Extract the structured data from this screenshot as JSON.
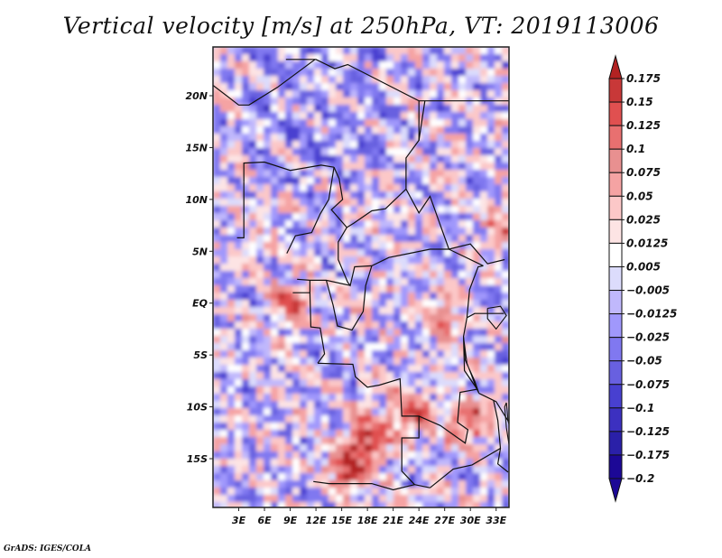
{
  "chart_data": {
    "type": "heatmap",
    "title": "Vertical velocity [m/s] at 250hPa, VT: 2019113006",
    "variable": "Vertical velocity",
    "units": "m/s",
    "level": "250hPa",
    "valid_time": "2019113006",
    "xlabel": "",
    "ylabel": "",
    "x_ticks": [
      "3E",
      "6E",
      "9E",
      "12E",
      "15E",
      "18E",
      "21E",
      "24E",
      "27E",
      "30E",
      "33E"
    ],
    "x_tick_values": [
      3,
      6,
      9,
      12,
      15,
      18,
      21,
      24,
      27,
      30,
      33
    ],
    "y_ticks": [
      "20N",
      "15N",
      "10N",
      "5N",
      "EQ",
      "5S",
      "10S",
      "15S"
    ],
    "y_tick_values": [
      20,
      15,
      10,
      5,
      0,
      -5,
      -10,
      -15
    ],
    "xlim": [
      0,
      34.5
    ],
    "ylim": [
      -19.7,
      24.7
    ],
    "grid": false,
    "colorbar": {
      "placement": "right",
      "labels": [
        "0.175",
        "0.15",
        "0.125",
        "0.1",
        "0.075",
        "0.05",
        "0.025",
        "0.0125",
        "0.005",
        "-0.005",
        "-0.0125",
        "-0.025",
        "-0.05",
        "-0.075",
        "-0.1",
        "-0.125",
        "-0.175",
        "-0.2"
      ],
      "colors": [
        "#b22222",
        "#c83838",
        "#e05050",
        "#e87070",
        "#e89090",
        "#f5a3a3",
        "#fcc8c8",
        "#fde4e4",
        "#ffffff",
        "#dcdcfc",
        "#c0b8fc",
        "#a098fc",
        "#8078f0",
        "#6860e0",
        "#4840d0",
        "#3c30c0",
        "#2a20a8",
        "#1c0896"
      ],
      "over_color": "#b22222",
      "under_color": "#1c0896",
      "extend": "both"
    },
    "field_description": "Speckled mesoscale pattern of ascent (red) and descent (blue); strongest ascent over southern Congo basin / Angola-Zambia (~10S-17S, 14E-28E) and around Lake Malawi (~10S-12S, 29E-31E)",
    "hotspots": [
      {
        "lat": -15.5,
        "lon": 15.3,
        "value": 0.175
      },
      {
        "lat": -12.5,
        "lon": 18.0,
        "value": 0.15
      },
      {
        "lat": -10.5,
        "lon": 22.5,
        "value": 0.15
      },
      {
        "lat": -11.0,
        "lon": 29.5,
        "value": 0.175
      },
      {
        "lat": 0.5,
        "lon": 8.5,
        "value": 0.125
      },
      {
        "lat": -1.0,
        "lon": 26.5,
        "value": 0.1
      },
      {
        "lat": 8.0,
        "lon": 33.0,
        "value": 0.075
      }
    ]
  },
  "credit": "GrADS: IGES/COLA"
}
